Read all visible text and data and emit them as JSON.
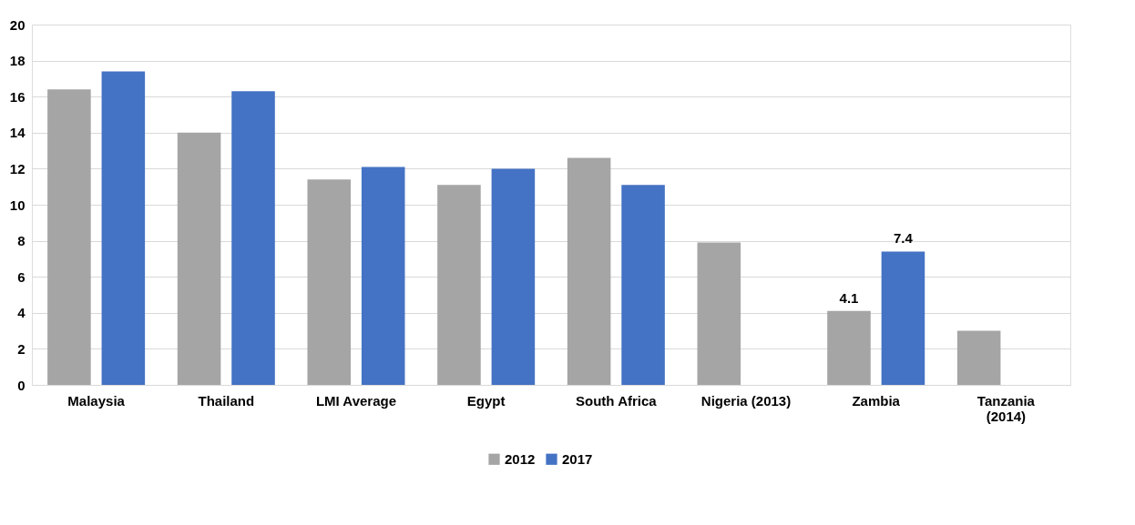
{
  "chart_data": {
    "type": "bar",
    "categories": [
      "Malaysia",
      "Thailand",
      "LMI Average",
      "Egypt",
      "South Africa",
      "Nigeria (2013)",
      "Zambia",
      "Tanzania\n(2014)"
    ],
    "series": [
      {
        "name": "2012",
        "color": "#a5a5a5",
        "values": [
          16.4,
          14.0,
          11.4,
          11.1,
          12.6,
          7.9,
          4.1,
          3.0
        ],
        "value_labels": [
          null,
          null,
          null,
          null,
          null,
          null,
          "4.1",
          null
        ]
      },
      {
        "name": "2017",
        "color": "#4472c4",
        "values": [
          17.4,
          16.3,
          12.1,
          12.0,
          11.1,
          null,
          7.4,
          null
        ],
        "value_labels": [
          null,
          null,
          null,
          null,
          null,
          null,
          "7.4",
          null
        ]
      }
    ],
    "ylim": [
      0,
      20
    ],
    "yticks": [
      0,
      2,
      4,
      6,
      8,
      10,
      12,
      14,
      16,
      18,
      20
    ],
    "grid": "y",
    "legend": "bottom"
  }
}
